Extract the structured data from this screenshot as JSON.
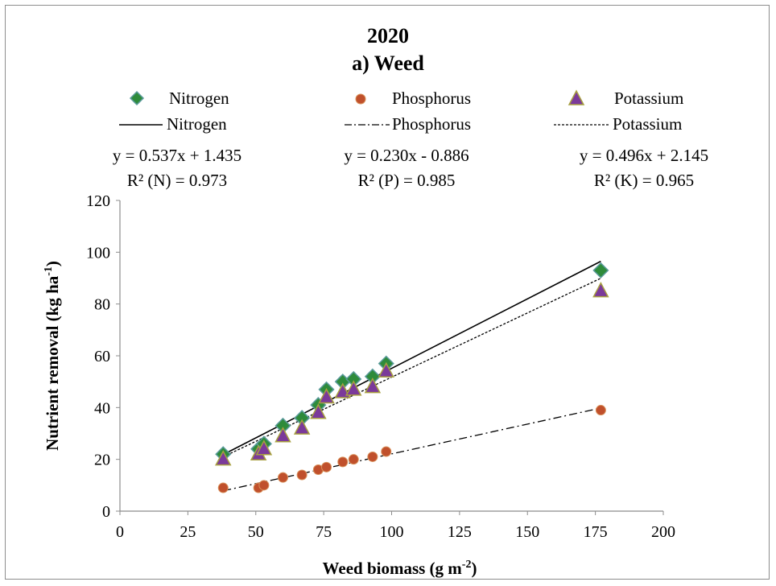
{
  "chart_data": {
    "type": "scatter",
    "title": "2020",
    "subtitle": "a) Weed",
    "xlabel": "Weed biomass (g m",
    "xlabel_sup": "-2",
    "xlabel_end": ")",
    "ylabel": "Nutrient removal (kg ha",
    "ylabel_sup": "-1",
    "ylabel_end": ")",
    "xlim": [
      0,
      200
    ],
    "ylim": [
      0,
      120
    ],
    "x_ticks": [
      0,
      25,
      50,
      75,
      100,
      125,
      150,
      175,
      200
    ],
    "y_ticks": [
      0,
      20,
      40,
      60,
      80,
      100,
      120
    ],
    "grid": false,
    "legend_position": "top",
    "series": [
      {
        "name": "Nitrogen",
        "marker": "diamond",
        "color": "#2e8b3a",
        "x": [
          38,
          51,
          53,
          60,
          67,
          73,
          76,
          82,
          86,
          93,
          98,
          177
        ],
        "y": [
          22,
          24,
          26,
          33,
          36,
          41,
          47,
          50,
          51,
          52,
          57,
          93
        ]
      },
      {
        "name": "Phosphorus",
        "marker": "circle",
        "color": "#c0502c",
        "x": [
          38,
          51,
          53,
          60,
          67,
          73,
          76,
          82,
          86,
          93,
          98,
          177
        ],
        "y": [
          9,
          9,
          10,
          13,
          14,
          16,
          17,
          19,
          20,
          21,
          23,
          39
        ]
      },
      {
        "name": "Potassium",
        "marker": "triangle",
        "color": "#7b3a9a",
        "x": [
          38,
          51,
          53,
          60,
          67,
          73,
          76,
          82,
          86,
          93,
          98,
          177
        ],
        "y": [
          20,
          22,
          24,
          29,
          32,
          38,
          44,
          46,
          47,
          48,
          54,
          85
        ]
      }
    ],
    "trendlines": [
      {
        "name": "Nitrogen",
        "style": "solid",
        "slope": 0.537,
        "intercept": 1.435,
        "x_range": [
          38,
          177
        ],
        "equation": "y = 0.537x + 1.435",
        "r2": "R² (N) = 0.973"
      },
      {
        "name": "Phosphorus",
        "style": "dashdot",
        "slope": 0.23,
        "intercept": -0.886,
        "x_range": [
          38,
          177
        ],
        "equation": "y = 0.230x - 0.886",
        "r2": "R²  (P) = 0.985"
      },
      {
        "name": "Potassium",
        "style": "dotted",
        "slope": 0.496,
        "intercept": 2.145,
        "x_range": [
          38,
          177
        ],
        "equation": "y = 0.496x + 2.145",
        "r2": "R²  (K) = 0.965"
      }
    ]
  }
}
